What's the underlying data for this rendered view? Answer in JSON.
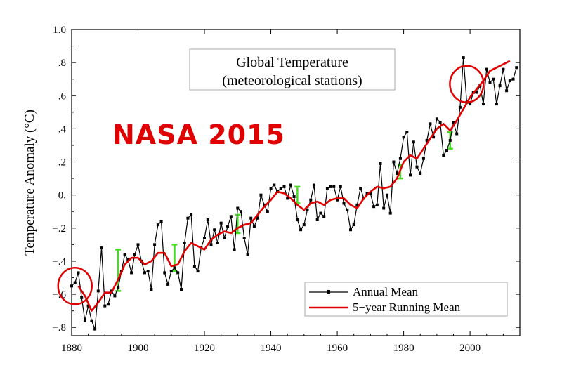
{
  "chart_data": {
    "type": "line",
    "title": "Global Temperature",
    "subtitle": "(meteorological stations)",
    "xlabel": "",
    "ylabel": "Temperature Anomaly (°C)",
    "xlim": [
      1880,
      2015
    ],
    "ylim": [
      -0.85,
      1.0
    ],
    "x_ticks": [
      1880,
      1900,
      1920,
      1940,
      1960,
      1980,
      2000
    ],
    "x_tick_labels": [
      "1880",
      "1900",
      "1920",
      "1940",
      "1960",
      "1980",
      "2000"
    ],
    "y_ticks": [
      -0.8,
      -0.6,
      -0.4,
      -0.2,
      0.0,
      0.2,
      0.4,
      0.6,
      0.8,
      1.0
    ],
    "y_tick_labels": [
      "−.8",
      "−.6",
      "−.4",
      "−.2",
      "0.",
      ".2",
      ".4",
      ".6",
      ".8",
      "1.0"
    ],
    "legend": {
      "position": "bottom-right",
      "entries": [
        "Annual Mean",
        "5−year Running Mean"
      ]
    },
    "annotation": "NASA 2015",
    "highlight_circles": [
      {
        "x": 1881,
        "y": -0.55
      },
      {
        "x": 1999,
        "y": 0.67
      }
    ],
    "series": [
      {
        "name": "Annual Mean",
        "color": "#000000",
        "x": [
          1880,
          1881,
          1882,
          1883,
          1884,
          1885,
          1886,
          1887,
          1888,
          1889,
          1890,
          1891,
          1892,
          1893,
          1894,
          1895,
          1896,
          1897,
          1898,
          1899,
          1900,
          1901,
          1902,
          1903,
          1904,
          1905,
          1906,
          1907,
          1908,
          1909,
          1910,
          1911,
          1912,
          1913,
          1914,
          1915,
          1916,
          1917,
          1918,
          1919,
          1920,
          1921,
          1922,
          1923,
          1924,
          1925,
          1926,
          1927,
          1928,
          1929,
          1930,
          1931,
          1932,
          1933,
          1934,
          1935,
          1936,
          1937,
          1938,
          1939,
          1940,
          1941,
          1942,
          1943,
          1944,
          1945,
          1946,
          1947,
          1948,
          1949,
          1950,
          1951,
          1952,
          1953,
          1954,
          1955,
          1956,
          1957,
          1958,
          1959,
          1960,
          1961,
          1962,
          1963,
          1964,
          1965,
          1966,
          1967,
          1968,
          1969,
          1970,
          1971,
          1972,
          1973,
          1974,
          1975,
          1976,
          1977,
          1978,
          1979,
          1980,
          1981,
          1982,
          1983,
          1984,
          1985,
          1986,
          1987,
          1988,
          1989,
          1990,
          1991,
          1992,
          1993,
          1994,
          1995,
          1996,
          1997,
          1998,
          1999,
          2000,
          2001,
          2002,
          2003,
          2004,
          2005,
          2006,
          2007,
          2008,
          2009,
          2010,
          2011,
          2012,
          2013,
          2014
        ],
        "values": [
          -0.55,
          -0.53,
          -0.47,
          -0.62,
          -0.76,
          -0.67,
          -0.76,
          -0.81,
          -0.58,
          -0.32,
          -0.67,
          -0.66,
          -0.58,
          -0.61,
          -0.56,
          -0.46,
          -0.36,
          -0.39,
          -0.47,
          -0.36,
          -0.3,
          -0.4,
          -0.47,
          -0.46,
          -0.57,
          -0.3,
          -0.18,
          -0.16,
          -0.47,
          -0.54,
          -0.46,
          -0.44,
          -0.47,
          -0.57,
          -0.29,
          -0.14,
          -0.12,
          -0.43,
          -0.46,
          -0.32,
          -0.26,
          -0.15,
          -0.3,
          -0.21,
          -0.29,
          -0.17,
          -0.26,
          -0.19,
          -0.13,
          -0.33,
          -0.08,
          -0.1,
          -0.26,
          -0.36,
          -0.14,
          -0.19,
          -0.14,
          0.0,
          -0.06,
          -0.1,
          0.04,
          0.06,
          0.02,
          0.04,
          0.05,
          -0.02,
          0.06,
          -0.01,
          -0.15,
          -0.21,
          -0.18,
          -0.09,
          -0.03,
          0.06,
          -0.15,
          -0.11,
          -0.13,
          0.04,
          0.05,
          0.05,
          -0.03,
          0.05,
          -0.05,
          -0.09,
          -0.21,
          -0.18,
          -0.06,
          0.04,
          -0.02,
          0.01,
          0.01,
          -0.07,
          -0.06,
          0.19,
          -0.08,
          0.0,
          -0.11,
          0.2,
          0.13,
          0.22,
          0.35,
          0.38,
          0.12,
          0.32,
          0.17,
          0.13,
          0.22,
          0.33,
          0.43,
          0.35,
          0.46,
          0.44,
          0.24,
          0.27,
          0.33,
          0.44,
          0.37,
          0.53,
          0.83,
          0.56,
          0.55,
          0.62,
          0.62,
          0.66,
          0.55,
          0.76,
          0.68,
          0.7,
          0.55,
          0.66,
          0.76,
          0.63,
          0.69,
          0.7,
          0.77
        ]
      },
      {
        "name": "5−year Running Mean",
        "color": "#e00000",
        "x": [
          1882,
          1884,
          1886,
          1888,
          1890,
          1892,
          1894,
          1896,
          1898,
          1900,
          1902,
          1904,
          1906,
          1908,
          1910,
          1912,
          1914,
          1916,
          1918,
          1920,
          1922,
          1924,
          1926,
          1928,
          1930,
          1932,
          1934,
          1936,
          1938,
          1940,
          1942,
          1944,
          1946,
          1948,
          1950,
          1952,
          1954,
          1956,
          1958,
          1960,
          1962,
          1964,
          1966,
          1968,
          1970,
          1972,
          1974,
          1976,
          1978,
          1980,
          1982,
          1984,
          1986,
          1988,
          1990,
          1992,
          1994,
          1996,
          1998,
          2000,
          2002,
          2004,
          2006,
          2008,
          2010,
          2012
        ],
        "values": [
          -0.55,
          -0.61,
          -0.7,
          -0.65,
          -0.59,
          -0.59,
          -0.51,
          -0.42,
          -0.38,
          -0.38,
          -0.42,
          -0.4,
          -0.35,
          -0.35,
          -0.43,
          -0.42,
          -0.34,
          -0.29,
          -0.31,
          -0.33,
          -0.27,
          -0.24,
          -0.22,
          -0.23,
          -0.2,
          -0.18,
          -0.17,
          -0.12,
          -0.07,
          -0.03,
          0.02,
          0.01,
          -0.02,
          -0.06,
          -0.09,
          -0.05,
          -0.04,
          -0.06,
          -0.03,
          -0.02,
          -0.02,
          -0.06,
          -0.08,
          -0.02,
          0.02,
          0.05,
          0.04,
          0.05,
          0.1,
          0.2,
          0.24,
          0.22,
          0.28,
          0.34,
          0.4,
          0.43,
          0.39,
          0.45,
          0.52,
          0.59,
          0.64,
          0.69,
          0.75,
          0.77,
          0.79,
          0.81
        ]
      }
    ],
    "uncertainty_bars": [
      {
        "x": 1894,
        "low": -0.58,
        "high": -0.33
      },
      {
        "x": 1911,
        "low": -0.46,
        "high": -0.3
      },
      {
        "x": 1930,
        "low": -0.23,
        "high": -0.12
      },
      {
        "x": 1948,
        "low": -0.05,
        "high": 0.05
      },
      {
        "x": 1979,
        "low": 0.1,
        "high": 0.18
      },
      {
        "x": 1994,
        "low": 0.28,
        "high": 0.38
      }
    ]
  }
}
